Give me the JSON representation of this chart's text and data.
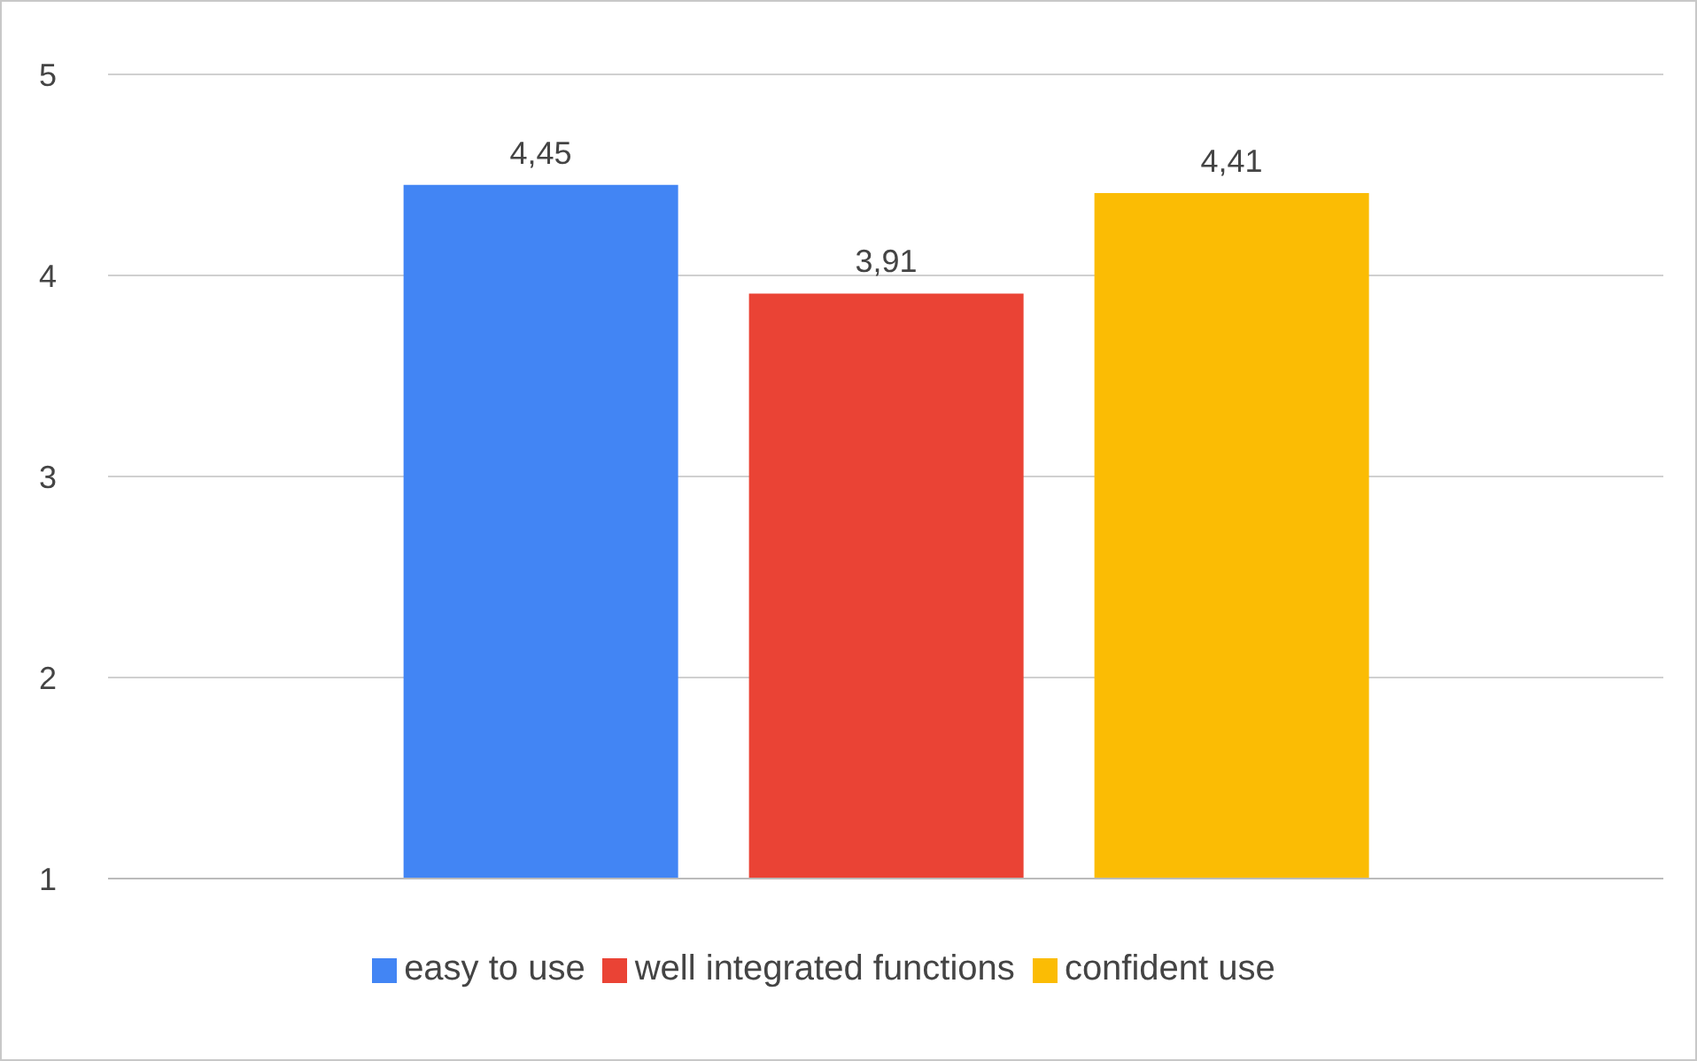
{
  "chart_data": {
    "type": "bar",
    "categories": [
      null
    ],
    "series": [
      {
        "name": "easy to use",
        "color": "#4285f4",
        "values": [
          4.45
        ],
        "value_labels": [
          "4,45"
        ]
      },
      {
        "name": "well integrated functions",
        "color": "#ea4335",
        "values": [
          3.91
        ],
        "value_labels": [
          "3,91"
        ]
      },
      {
        "name": "confident use",
        "color": "#fbbc04",
        "values": [
          4.41
        ],
        "value_labels": [
          "4,41"
        ]
      }
    ],
    "ylim": [
      1,
      5
    ],
    "yticks": [
      1,
      2,
      3,
      4,
      5
    ],
    "grid": "y",
    "legend": "bottom"
  }
}
